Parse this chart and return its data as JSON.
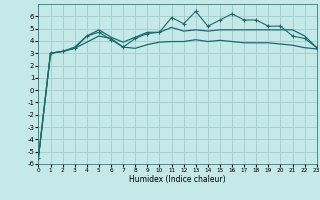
{
  "xlabel": "Humidex (Indice chaleur)",
  "bg_color": "#c5e8e8",
  "grid_color": "#a8d0d0",
  "line_color": "#1a6b6b",
  "x": [
    0,
    1,
    2,
    3,
    4,
    5,
    6,
    7,
    8,
    9,
    10,
    11,
    12,
    13,
    14,
    15,
    16,
    17,
    18,
    19,
    20,
    21,
    22,
    23
  ],
  "line1": [
    -5.5,
    3.0,
    3.15,
    3.4,
    3.9,
    4.4,
    4.2,
    3.5,
    3.4,
    3.7,
    3.9,
    3.95,
    3.95,
    4.1,
    3.95,
    4.05,
    3.95,
    3.85,
    3.85,
    3.85,
    3.75,
    3.65,
    3.45,
    3.35
  ],
  "line2": [
    -5.5,
    3.0,
    3.15,
    3.4,
    4.4,
    4.7,
    4.1,
    3.5,
    4.2,
    4.6,
    4.7,
    5.9,
    5.4,
    6.4,
    5.2,
    5.7,
    6.2,
    5.7,
    5.7,
    5.2,
    5.2,
    4.4,
    4.2,
    3.45
  ],
  "line3": [
    -5.5,
    3.0,
    3.15,
    3.5,
    4.4,
    4.9,
    4.3,
    3.9,
    4.3,
    4.7,
    4.7,
    5.1,
    4.8,
    4.9,
    4.8,
    4.9,
    4.9,
    4.9,
    4.9,
    4.9,
    4.9,
    4.9,
    4.4,
    3.45
  ],
  "ylim": [
    -6,
    7
  ],
  "yticks": [
    -6,
    -5,
    -4,
    -3,
    -2,
    -1,
    0,
    1,
    2,
    3,
    4,
    5,
    6
  ],
  "xlim": [
    0,
    23
  ],
  "xticks": [
    0,
    1,
    2,
    3,
    4,
    5,
    6,
    7,
    8,
    9,
    10,
    11,
    12,
    13,
    14,
    15,
    16,
    17,
    18,
    19,
    20,
    21,
    22,
    23
  ]
}
